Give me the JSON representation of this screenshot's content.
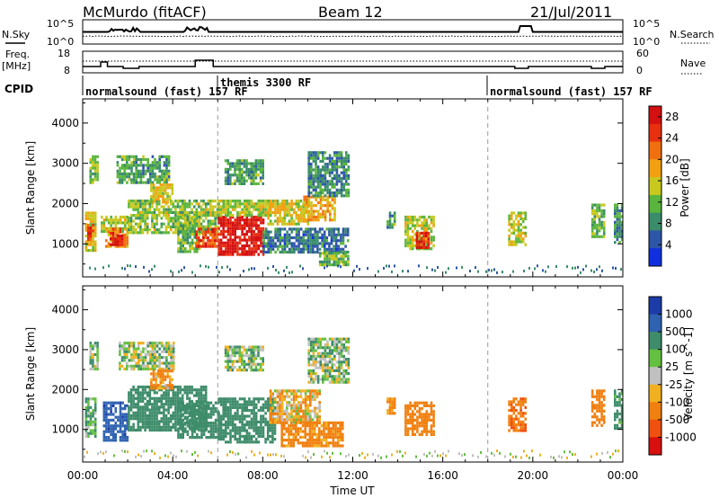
{
  "header": {
    "title": "McMurdo (fitACF)",
    "beam": "Beam 12",
    "date": "21/Jul/2011"
  },
  "noise_panel": {
    "left_label": "N.Sky",
    "right_label": "N.Search",
    "left_ticks": [
      "10^5",
      "10^0"
    ],
    "right_ticks": [
      "10^5",
      "10^0"
    ]
  },
  "freq_panel": {
    "left_label_1": "Freq.",
    "left_label_2": "[MHz]",
    "right_label": "Nave",
    "left_ticks": [
      "18",
      "8"
    ],
    "right_ticks": [
      "60",
      "0"
    ]
  },
  "cpid": {
    "label": "CPID",
    "segments": [
      {
        "name": "normalsound (fast) 157 RF",
        "start": 0,
        "end": 6
      },
      {
        "name": "themis 3300 RF",
        "start": 6,
        "end": 18
      },
      {
        "name": "normalsound (fast) 157 RF",
        "start": 18,
        "end": 24
      }
    ]
  },
  "x_axis": {
    "label": "Time UT",
    "ticks": [
      "00:00",
      "04:00",
      "08:00",
      "12:00",
      "16:00",
      "20:00",
      "00:00"
    ]
  },
  "y_axis": {
    "label": "Slant Range [km]",
    "ticks": [
      "1000",
      "2000",
      "3000",
      "4000"
    ]
  },
  "power_colorbar": {
    "label": "Power [dB]",
    "ticks": [
      "4",
      "8",
      "12",
      "16",
      "20",
      "24",
      "28"
    ],
    "colors": [
      "#1030e0",
      "#2e56a8",
      "#3a8c6a",
      "#5ab53c",
      "#c8c81e",
      "#f0a010",
      "#f07010",
      "#e83010",
      "#d41010"
    ]
  },
  "velocity_colorbar": {
    "label": "Velocity [m s^-1]",
    "ticks": [
      "1000",
      "500",
      "100",
      "25",
      "-25",
      "-100",
      "-500",
      "-1000"
    ],
    "colors": [
      "#1c3ca8",
      "#2f62b0",
      "#3e8c6a",
      "#64c040",
      "#c0c0c0",
      "#f0b020",
      "#f08010",
      "#f05010",
      "#d81010"
    ]
  },
  "chart_data": [
    {
      "type": "heatmap",
      "name": "power",
      "xlabel": "Time UT",
      "ylabel": "Slant Range [km]",
      "xlim": [
        0,
        24
      ],
      "ylim": [
        180,
        4600
      ],
      "colorbar_label": "Power [dB]",
      "colorbar_range": [
        0,
        30
      ],
      "regions": [
        {
          "t0": 0.1,
          "t1": 0.6,
          "r0": 800,
          "r1": 1800,
          "v": 16
        },
        {
          "t0": 0.2,
          "t1": 0.5,
          "r0": 1100,
          "r1": 1500,
          "v": 26
        },
        {
          "t0": 0.3,
          "t1": 0.7,
          "r0": 2500,
          "r1": 3200,
          "v": 12
        },
        {
          "t0": 0.8,
          "t1": 2.0,
          "r0": 1300,
          "r1": 1700,
          "v": 14
        },
        {
          "t0": 1.0,
          "t1": 2.0,
          "r0": 900,
          "r1": 1400,
          "v": 20
        },
        {
          "t0": 1.2,
          "t1": 1.8,
          "r0": 1000,
          "r1": 1300,
          "v": 28
        },
        {
          "t0": 1.5,
          "t1": 3.8,
          "r0": 2500,
          "r1": 3200,
          "v": 10
        },
        {
          "t0": 2.0,
          "t1": 6.0,
          "r0": 1300,
          "r1": 2100,
          "v": 13
        },
        {
          "t0": 3.0,
          "t1": 4.0,
          "r0": 2000,
          "r1": 2500,
          "v": 16
        },
        {
          "t0": 4.2,
          "t1": 5.2,
          "r0": 800,
          "r1": 1700,
          "v": 12
        },
        {
          "t0": 5.0,
          "t1": 6.0,
          "r0": 900,
          "r1": 1400,
          "v": 24
        },
        {
          "t0": 6.0,
          "t1": 8.0,
          "r0": 700,
          "r1": 1700,
          "v": 28
        },
        {
          "t0": 6.0,
          "t1": 8.3,
          "r0": 1700,
          "r1": 2100,
          "v": 14
        },
        {
          "t0": 6.3,
          "t1": 8.0,
          "r0": 2500,
          "r1": 3100,
          "v": 10
        },
        {
          "t0": 8.0,
          "t1": 11.8,
          "r0": 800,
          "r1": 1400,
          "v": 7
        },
        {
          "t0": 8.2,
          "t1": 10.0,
          "r0": 1500,
          "r1": 2100,
          "v": 16
        },
        {
          "t0": 9.8,
          "t1": 11.2,
          "r0": 1600,
          "r1": 2200,
          "v": 18
        },
        {
          "t0": 10.0,
          "t1": 11.8,
          "r0": 2200,
          "r1": 3300,
          "v": 8
        },
        {
          "t0": 10.5,
          "t1": 11.8,
          "r0": 500,
          "r1": 800,
          "v": 12
        },
        {
          "t0": 13.5,
          "t1": 13.9,
          "r0": 1400,
          "r1": 1800,
          "v": 10
        },
        {
          "t0": 14.3,
          "t1": 15.6,
          "r0": 900,
          "r1": 1700,
          "v": 14
        },
        {
          "t0": 14.8,
          "t1": 15.4,
          "r0": 900,
          "r1": 1300,
          "v": 26
        },
        {
          "t0": 18.9,
          "t1": 19.7,
          "r0": 1000,
          "r1": 1800,
          "v": 15
        },
        {
          "t0": 22.6,
          "t1": 23.2,
          "r0": 1200,
          "r1": 2000,
          "v": 12
        },
        {
          "t0": 23.6,
          "t1": 24.0,
          "r0": 1000,
          "r1": 2000,
          "v": 8
        }
      ]
    },
    {
      "type": "heatmap",
      "name": "velocity",
      "xlabel": "Time UT",
      "ylabel": "Slant Range [km]",
      "xlim": [
        0,
        24
      ],
      "ylim": [
        180,
        4600
      ],
      "colorbar_label": "Velocity [m s^-1]",
      "colorbar_range": [
        -1000,
        1000
      ],
      "regions": [
        {
          "t0": 0.1,
          "t1": 0.6,
          "r0": 800,
          "r1": 1800,
          "v": 120
        },
        {
          "t0": 0.3,
          "t1": 0.7,
          "r0": 2500,
          "r1": 3200,
          "v": 60
        },
        {
          "t0": 0.9,
          "t1": 2.0,
          "r0": 700,
          "r1": 1700,
          "v": 900
        },
        {
          "t0": 1.6,
          "t1": 4.0,
          "r0": 2500,
          "r1": 3200,
          "v": 30
        },
        {
          "t0": 2.0,
          "t1": 5.5,
          "r0": 1000,
          "r1": 2100,
          "v": 300
        },
        {
          "t0": 3.0,
          "t1": 4.0,
          "r0": 2000,
          "r1": 2500,
          "v": -150
        },
        {
          "t0": 4.2,
          "t1": 6.0,
          "r0": 800,
          "r1": 1700,
          "v": 350
        },
        {
          "t0": 6.0,
          "t1": 8.5,
          "r0": 700,
          "r1": 1800,
          "v": 350
        },
        {
          "t0": 6.3,
          "t1": 8.0,
          "r0": 2500,
          "r1": 3100,
          "v": 40
        },
        {
          "t0": 8.3,
          "t1": 10.5,
          "r0": 1200,
          "r1": 2000,
          "v": -60
        },
        {
          "t0": 8.8,
          "t1": 11.5,
          "r0": 600,
          "r1": 1200,
          "v": -200
        },
        {
          "t0": 10.0,
          "t1": 11.8,
          "r0": 2200,
          "r1": 3300,
          "v": 60
        },
        {
          "t0": 13.5,
          "t1": 13.9,
          "r0": 1400,
          "r1": 1800,
          "v": -150
        },
        {
          "t0": 14.3,
          "t1": 15.6,
          "r0": 900,
          "r1": 1700,
          "v": -250
        },
        {
          "t0": 18.9,
          "t1": 19.7,
          "r0": 1000,
          "r1": 1800,
          "v": -450
        },
        {
          "t0": 22.6,
          "t1": 23.2,
          "r0": 1100,
          "r1": 2000,
          "v": -350
        },
        {
          "t0": 23.6,
          "t1": 24.0,
          "r0": 1000,
          "r1": 2000,
          "v": 200
        }
      ]
    }
  ]
}
